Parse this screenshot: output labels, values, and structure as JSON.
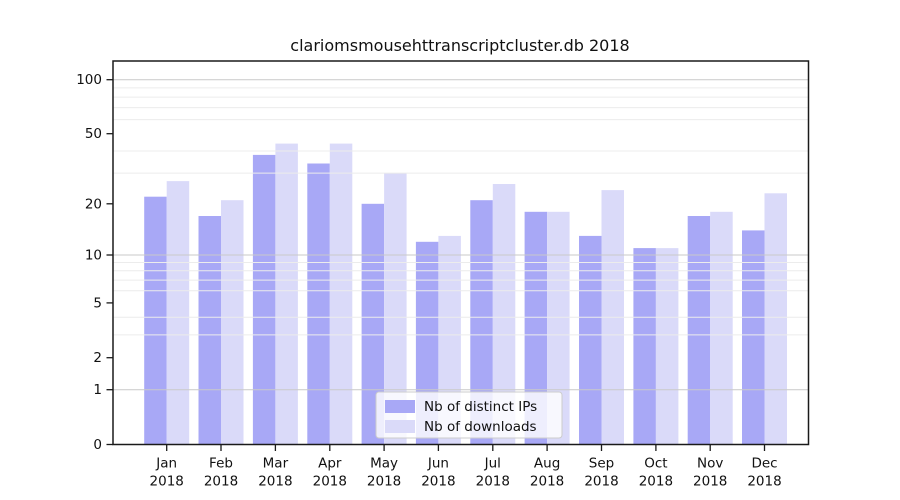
{
  "chart_data": {
    "type": "bar",
    "title": "clariomsmousehttranscriptcluster.db 2018",
    "year": "2018",
    "months": [
      "Jan",
      "Feb",
      "Mar",
      "Apr",
      "May",
      "Jun",
      "Jul",
      "Aug",
      "Sep",
      "Oct",
      "Nov",
      "Dec"
    ],
    "series": [
      {
        "name": "Nb of distinct IPs",
        "color": "#a8a8f6",
        "values": [
          22,
          17,
          38,
          34,
          20,
          12,
          21,
          18,
          13,
          11,
          17,
          14
        ]
      },
      {
        "name": "Nb of downloads",
        "color": "#dadaf9",
        "values": [
          27,
          21,
          44,
          44,
          30,
          13,
          26,
          18,
          24,
          11,
          18,
          23
        ]
      }
    ],
    "yscale": "log1p",
    "yticks": [
      0,
      1,
      2,
      5,
      10,
      20,
      50,
      100
    ],
    "major_gridlines": [
      1,
      10,
      100
    ],
    "minor_gridlines": [
      3,
      4,
      6,
      7,
      8,
      9,
      30,
      40,
      60,
      70,
      80,
      90
    ],
    "ylim": [
      0,
      127
    ],
    "grid": true,
    "legend_position": "lower center"
  }
}
